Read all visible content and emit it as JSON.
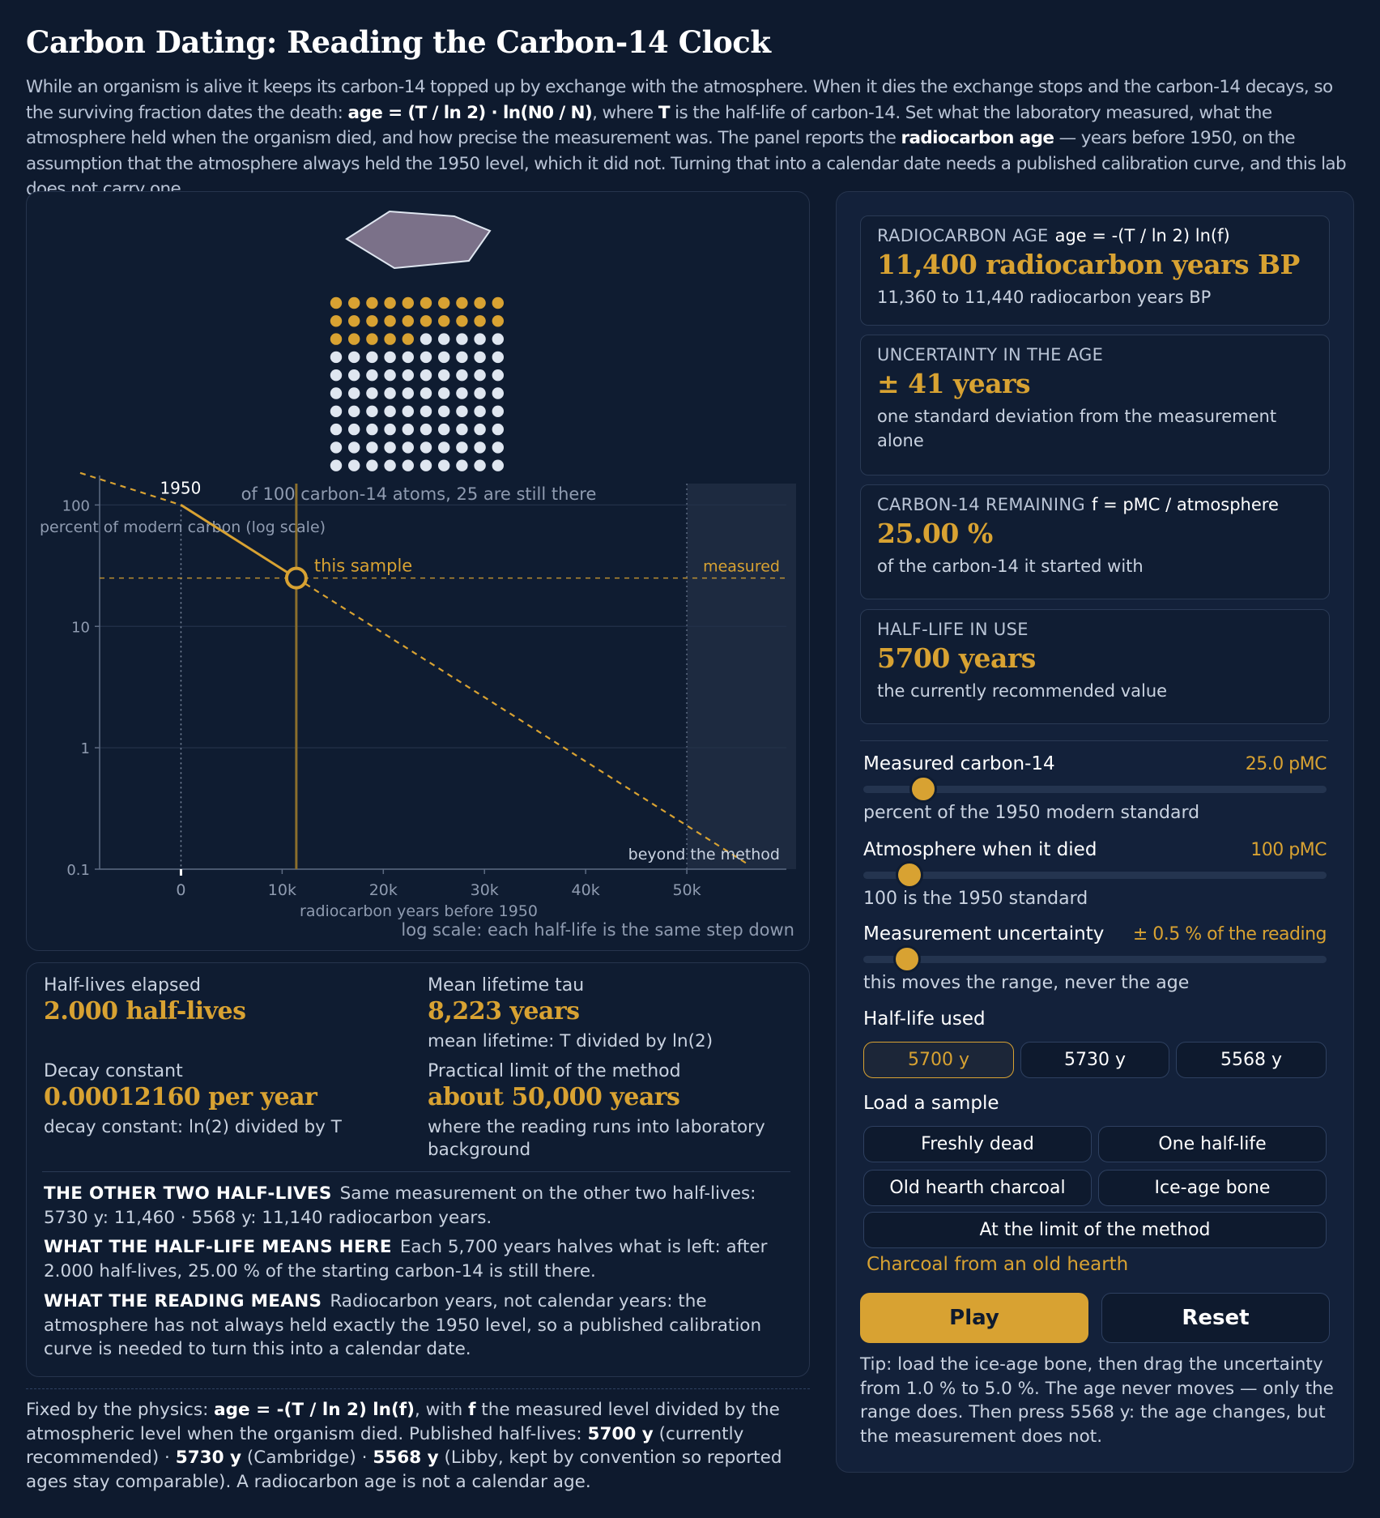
{
  "title": "Carbon Dating: Reading the Carbon-14 Clock",
  "intro": {
    "p1": "While an organism is alive it keeps its carbon-14 topped up by exchange with the atmosphere. When it dies the exchange stops and the carbon-14 decays, so the surviving fraction dates the death: ",
    "formula": "age = (T / ln 2) · ln(N0 / N)",
    "p2": ", where ",
    "T": "T",
    "p3": " is the half-life of carbon-14. Set what the laboratory measured, what the atmosphere held when the organism died, and how precise the measurement was. The panel reports the ",
    "radiocarbon_age": "radiocarbon age",
    "p4": " — years before 1950, on the assumption that the atmosphere always held the 1950 level, which it did not. Turning that into a calendar date needs a published calibration curve, and this lab does not carry one."
  },
  "atoms": {
    "total": 100,
    "remaining": 25,
    "caption": "of 100 carbon-14 atoms, 25 are still there",
    "color_remaining": "#d8a232",
    "color_decayed": "#dfe6f0"
  },
  "chart_data": {
    "type": "line",
    "ylabel": "percent of modern carbon (log scale)",
    "xlabel": "radiocarbon years before 1950",
    "note": "log scale: each half-life is the same step down",
    "xlim": [
      -5000,
      60000
    ],
    "ylim": [
      0.1,
      150
    ],
    "yscale": "log",
    "x_ticks": [
      0,
      10000,
      20000,
      30000,
      40000,
      50000
    ],
    "x_tick_labels": [
      "0",
      "10k",
      "20k",
      "30k",
      "40k",
      "50k"
    ],
    "y_ticks": [
      100,
      10,
      1,
      0.1
    ],
    "y_tick_labels": [
      "100",
      "10",
      "1",
      "0.1"
    ],
    "half_life": 5700,
    "start_label": "1950",
    "sample": {
      "x": 11400,
      "y": 25,
      "label": "this sample"
    },
    "measured_label": "measured",
    "limit_x": 50000,
    "limit_label": "beyond the method",
    "color": "#d8a232"
  },
  "readouts": [
    {
      "label": "RADIOCARBON AGE",
      "formula": "age = -(T / ln 2) ln(f)",
      "value": "11,400 radiocarbon years BP",
      "sub": "11,360 to 11,440 radiocarbon years BP"
    },
    {
      "label": "UNCERTAINTY IN THE AGE",
      "formula": "",
      "value": "± 41 years",
      "sub": "one standard deviation from the measurement alone"
    },
    {
      "label": "CARBON-14 REMAINING",
      "formula": "f = pMC / atmosphere",
      "value": "25.00 %",
      "sub": "of the carbon-14 it started with"
    },
    {
      "label": "HALF-LIFE IN USE",
      "formula": "",
      "value": "5700 years",
      "sub": "the currently recommended value"
    }
  ],
  "controls": {
    "measured": {
      "label": "Measured carbon-14",
      "value": "25.0 pMC",
      "help": "percent of the 1950 modern standard",
      "fraction": 0.13
    },
    "atmosphere": {
      "label": "Atmosphere when it died",
      "value": "100 pMC",
      "help": "100 is the 1950 standard",
      "fraction": 0.1
    },
    "uncertainty": {
      "label": "Measurement uncertainty",
      "value": "± 0.5 % of the reading",
      "help": "this moves the range, never the age",
      "fraction": 0.095
    }
  },
  "half_life_used": {
    "label": "Half-life used",
    "options": [
      "5700 y",
      "5730 y",
      "5568 y"
    ],
    "selected": "5700 y"
  },
  "load_sample": {
    "label": "Load a sample",
    "presets": [
      "Freshly dead",
      "One half-life",
      "Old hearth charcoal",
      "Ice-age bone",
      "At the limit of the method"
    ],
    "status": "Charcoal from an old hearth"
  },
  "actions": {
    "play": "Play",
    "reset": "Reset"
  },
  "tip": "Tip: load the ice-age bone, then drag the uncertainty from 1.0 % to 5.0 %. The age never moves — only the range does. Then press 5568 y: the age changes, but the measurement does not.",
  "stats": {
    "half_lives": {
      "label": "Half-lives elapsed",
      "value": "2.000 half-lives"
    },
    "tau": {
      "label": "Mean lifetime  tau",
      "value": "8,223 years",
      "sub": "mean lifetime: T divided by ln(2)"
    },
    "decay": {
      "label": "Decay constant",
      "value": "0.00012160 per year",
      "sub": "decay constant: ln(2) divided by T"
    },
    "limit": {
      "label": "Practical limit of the method",
      "value": "about 50,000 years",
      "sub": "where the reading runs into laboratory background"
    }
  },
  "notes": [
    {
      "head": "THE OTHER TWO HALF-LIVES",
      "text": "Same measurement on the other two half-lives: 5730 y: 11,460 · 5568 y: 11,140 radiocarbon years."
    },
    {
      "head": "WHAT THE HALF-LIFE MEANS HERE",
      "text": "Each 5,700 years halves what is left: after 2.000 half-lives, 25.00 % of the starting carbon-14 is still there."
    },
    {
      "head": "WHAT THE READING MEANS",
      "text": "Radiocarbon years, not calendar years: the atmosphere has not always held exactly the 1950 level, so a published calibration curve is needed to turn this into a calendar date."
    }
  ],
  "footer": {
    "a": "Fixed by the physics: ",
    "formula": "age = -(T / ln 2) ln(f)",
    "b": ", with ",
    "f": "f",
    "c": " the measured level divided by the atmospheric level when the organism died. Published half-lives: ",
    "h1": "5700 y",
    "d": " (currently recommended) · ",
    "h2": "5730 y",
    "e": " (Cambridge) · ",
    "h3": "5568 y",
    "g": " (Libby, kept by convention so reported ages stay comparable). A radiocarbon age is not a calendar age."
  }
}
